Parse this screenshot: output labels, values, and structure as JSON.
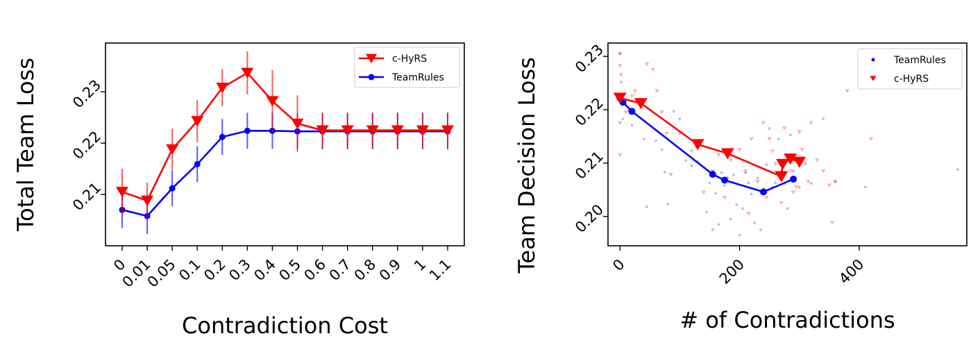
{
  "chart_data": [
    {
      "type": "line",
      "xlabel": "Contradiction Cost",
      "ylabel": "Total Team Loss",
      "categories": [
        "0",
        "0.01",
        "0.05",
        "0.1",
        "0.2",
        "0.3",
        "0.4",
        "0.5",
        "0.6",
        "0.7",
        "0.8",
        "0.9",
        "1",
        "1.1"
      ],
      "ylim": [
        0.2,
        0.2395
      ],
      "yticks": [
        0.21,
        0.22,
        0.23
      ],
      "legend_position": "top-right",
      "grid": false,
      "series": [
        {
          "name": "c-HyRS",
          "color": "#ff0000",
          "marker": "triangle-down",
          "values": [
            0.2105,
            0.2088,
            0.2188,
            0.2243,
            0.2308,
            0.2337,
            0.2282,
            0.2238,
            0.2225,
            0.2225,
            0.2225,
            0.2225,
            0.2225,
            0.2225
          ],
          "err": [
            0.0045,
            0.0035,
            0.004,
            0.0041,
            0.0036,
            0.0042,
            0.006,
            0.0055,
            0.0035,
            0.0035,
            0.0035,
            0.0035,
            0.0035,
            0.0035
          ]
        },
        {
          "name": "TeamRules",
          "color": "#0000ff",
          "marker": "circle",
          "values": [
            0.207,
            0.2058,
            0.2112,
            0.2159,
            0.2212,
            0.2224,
            0.2224,
            0.2223,
            0.2223,
            0.2223,
            0.2223,
            0.2223,
            0.2223,
            0.2223
          ],
          "err": [
            0.0035,
            0.0035,
            0.0035,
            0.0035,
            0.0035,
            0.0035,
            0.0035,
            0.0035,
            0.0035,
            0.0035,
            0.0035,
            0.0035,
            0.0035,
            0.0035
          ]
        }
      ]
    },
    {
      "type": "scatter",
      "xlabel": "# of Contradictions",
      "ylabel": "Team Decision Loss",
      "xlim": [
        -20,
        580
      ],
      "ylim": [
        0.1945,
        0.2325
      ],
      "xticks": [
        0,
        200,
        400
      ],
      "yticks": [
        0.2,
        0.21,
        0.22,
        0.23
      ],
      "legend_position": "top-right",
      "grid": false,
      "series": [
        {
          "name": "TeamRules",
          "color": "#0000ff",
          "marker": "dot",
          "line": {
            "x": [
              0,
              5,
              20,
              155,
              175,
              240,
              290
            ],
            "y": [
              0.2222,
              0.2214,
              0.2197,
              0.2079,
              0.2068,
              0.2046,
              0.207
            ]
          },
          "points": {
            "x": [
              0,
              2,
              5,
              8,
              15,
              20,
              40,
              45,
              60,
              70,
              75,
              80,
              90,
              100,
              110,
              120,
              130,
              140,
              145,
              150,
              155,
              160,
              165,
              170,
              175,
              180,
              185,
              190,
              195,
              200,
              205,
              210,
              215,
              220,
              225,
              230,
              235,
              240,
              245,
              250,
              255,
              260,
              265,
              270,
              275,
              280,
              285,
              290,
              300,
              320,
              340,
              360,
              410,
              565
            ],
            "y": [
              0.2305,
              0.2252,
              0.2183,
              0.2218,
              0.2198,
              0.2171,
              0.2145,
              0.2018,
              0.2142,
              0.2125,
              0.2083,
              0.2023,
              0.2197,
              0.2183,
              0.2105,
              0.2095,
              0.2103,
              0.2092,
              0.2008,
              0.2063,
              0.1975,
              0.2043,
              0.1985,
              0.2082,
              0.2058,
              0.2073,
              0.1995,
              0.2078,
              0.2022,
              0.1965,
              0.2015,
              0.2082,
              0.2063,
              0.2042,
              0.1988,
              0.2072,
              0.1975,
              0.2051,
              0.2097,
              0.2165,
              0.2055,
              0.2063,
              0.2145,
              0.2085,
              0.2062,
              0.2015,
              0.2153,
              0.2085,
              0.2055,
              0.2062,
              0.2183,
              0.2065,
              0.2055,
              0.2088
            ]
          }
        },
        {
          "name": "c-HyRS",
          "color": "#ff0000",
          "marker": "triangle-down",
          "line": {
            "x": [
              0,
              35,
              130,
              180,
              270,
              272,
              285,
              300
            ],
            "y": [
              0.2222,
              0.2212,
              0.2135,
              0.2118,
              0.2075,
              0.2098,
              0.2108,
              0.2102
            ]
          },
          "points": {
            "x": [
              0,
              0,
              0,
              0,
              2,
              5,
              10,
              20,
              25,
              45,
              55,
              62,
              70,
              78,
              85,
              100,
              120,
              140,
              155,
              165,
              175,
              185,
              200,
              210,
              215,
              220,
              230,
              240,
              245,
              250,
              255,
              260,
              265,
              270,
              275,
              280,
              285,
              290,
              295,
              300,
              305,
              310,
              315,
              320,
              330,
              340,
              350,
              355,
              360,
              380,
              420
            ],
            "y": [
              0.2305,
              0.2282,
              0.2175,
              0.2115,
              0.2265,
              0.2215,
              0.2195,
              0.2225,
              0.2235,
              0.2285,
              0.2275,
              0.2235,
              0.2195,
              0.2155,
              0.2078,
              0.2155,
              0.2122,
              0.2045,
              0.2085,
              0.2115,
              0.2035,
              0.2105,
              0.2125,
              0.2085,
              0.2005,
              0.2145,
              0.2065,
              0.2175,
              0.2035,
              0.2145,
              0.2122,
              0.2098,
              0.2075,
              0.2025,
              0.2165,
              0.2105,
              0.2085,
              0.2045,
              0.2055,
              0.2158,
              0.2125,
              0.2098,
              0.2065,
              0.2175,
              0.2105,
              0.2085,
              0.2058,
              0.1988,
              0.2065,
              0.2235,
              0.2145
            ]
          }
        }
      ]
    }
  ]
}
